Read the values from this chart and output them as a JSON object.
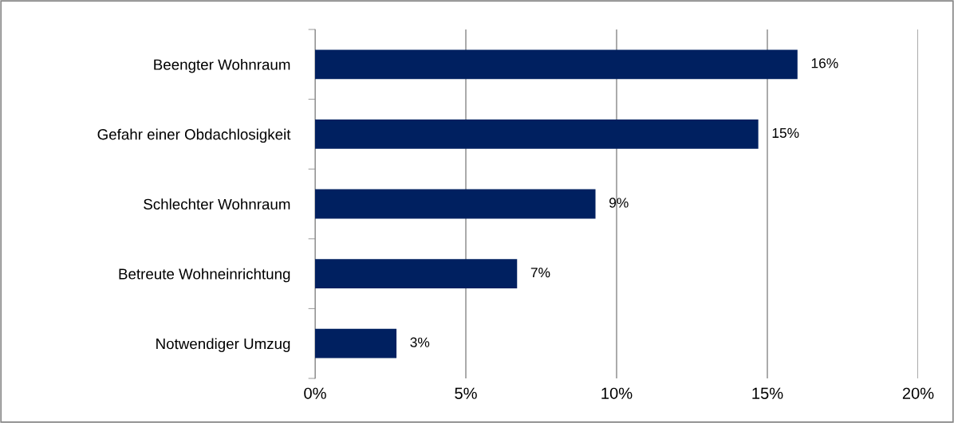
{
  "chart_data": {
    "type": "bar",
    "orientation": "horizontal",
    "categories": [
      "Beengter Wohnraum",
      "Gefahr einer Obdachlosigkeit",
      "Schlechter Wohnraum",
      "Betreute Wohneinrichtung",
      "Notwendiger Umzug"
    ],
    "values": [
      16.0,
      14.7,
      9.3,
      6.7,
      2.7
    ],
    "value_labels": [
      "16%",
      "15%",
      "9%",
      "7%",
      "3%"
    ],
    "color": "#002060",
    "xlim": [
      0,
      20
    ],
    "xticks": [
      {
        "value": 0,
        "label": "0%"
      },
      {
        "value": 5,
        "label": "5%"
      },
      {
        "value": 10,
        "label": "10%"
      },
      {
        "value": 15,
        "label": "15%"
      },
      {
        "value": 20,
        "label": "20%"
      }
    ],
    "grid": "x",
    "legend": false
  }
}
